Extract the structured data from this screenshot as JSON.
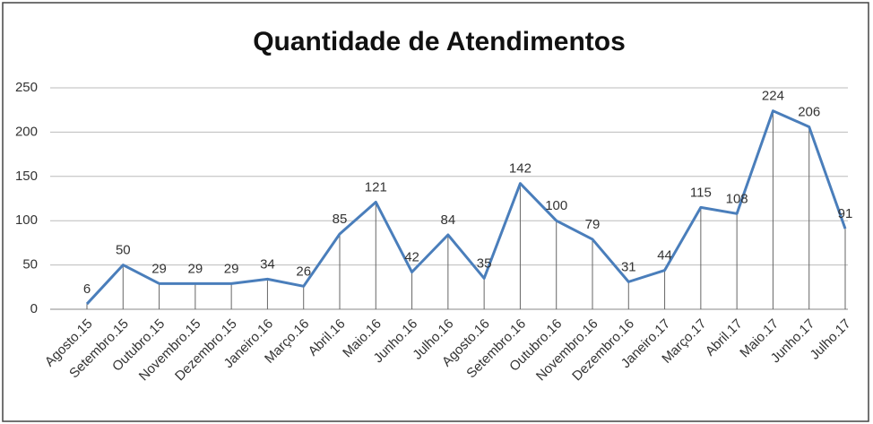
{
  "chart_data": {
    "type": "line",
    "title": "Quantidade de Atendimentos",
    "categories": [
      "Agosto.15",
      "Setembro.15",
      "Outubro.15",
      "Novembro.15",
      "Dezembro.15",
      "Janeiro.16",
      "Março.16",
      "Abril.16",
      "Maio.16",
      "Junho.16",
      "Julho.16",
      "Agosto.16",
      "Setembro.16",
      "Outubro.16",
      "Novembro.16",
      "Dezembro.16",
      "Janeiro.17",
      "Março.17",
      "Abril.17",
      "Maio.17",
      "Junho.17",
      "Julho.17"
    ],
    "values": [
      6,
      50,
      29,
      29,
      29,
      34,
      26,
      85,
      121,
      42,
      84,
      35,
      142,
      100,
      79,
      31,
      44,
      115,
      108,
      224,
      206,
      91
    ],
    "color": "#4a7ebb",
    "ylim": [
      0,
      250
    ],
    "yticks": [
      0,
      50,
      100,
      150,
      200,
      250
    ],
    "grid": true
  }
}
